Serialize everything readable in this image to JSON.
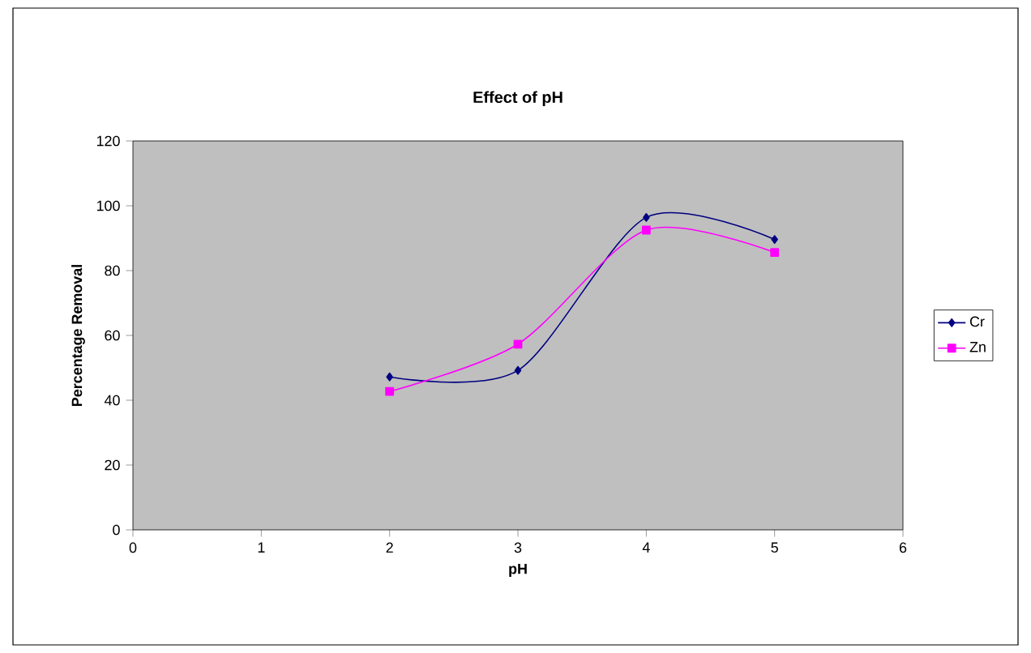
{
  "chart_data": {
    "type": "line",
    "title": "Effect of pH",
    "xlabel": "pH",
    "ylabel": "Percentage Removal",
    "x": [
      2,
      3,
      4,
      5
    ],
    "series": [
      {
        "name": "Cr",
        "color": "#000080",
        "marker": "diamond",
        "values": [
          47.2,
          49.2,
          96.4,
          89.6
        ]
      },
      {
        "name": "Zn",
        "color": "#ff00ff",
        "marker": "square",
        "values": [
          42.7,
          57.3,
          92.5,
          85.6
        ]
      }
    ],
    "xlim": [
      0,
      6
    ],
    "xticks": [
      0,
      1,
      2,
      3,
      4,
      5,
      6
    ],
    "ylim": [
      0,
      120
    ],
    "yticks": [
      0,
      20,
      40,
      60,
      80,
      100,
      120
    ],
    "grid": false,
    "legend": "right",
    "line_style": "solid"
  }
}
